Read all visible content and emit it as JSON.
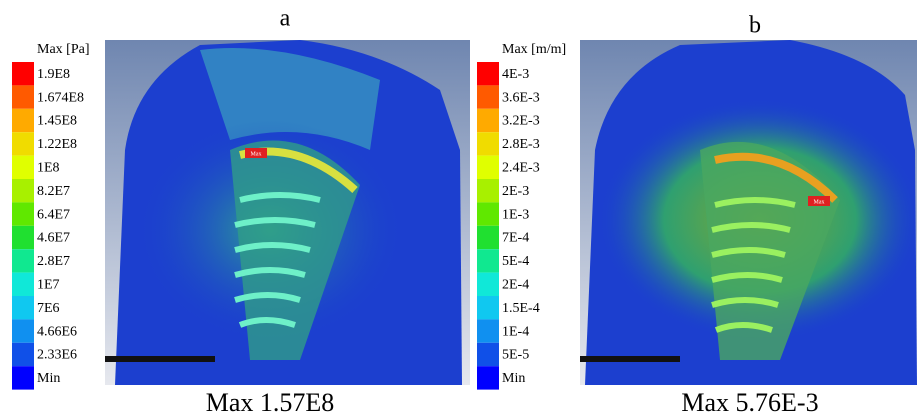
{
  "panels": [
    {
      "label": "a",
      "legend_title": "Max [Pa]",
      "legend_labels": [
        "1.9E8",
        "1.674E8",
        "1.45E8",
        "1.22E8",
        "1E8",
        "8.2E7",
        "6.4E7",
        "4.6E7",
        "2.8E7",
        "1E7",
        "7E6",
        "4.66E6",
        "2.33E6",
        "Min"
      ],
      "marker": "Max",
      "caption": "Max 1.57E8"
    },
    {
      "label": "b",
      "legend_title": "Max [m/m]",
      "legend_labels": [
        "4E-3",
        "3.6E-3",
        "3.2E-3",
        "2.8E-3",
        "2.4E-3",
        "2E-3",
        "1E-3",
        "7E-4",
        "5E-4",
        "2E-4",
        "1.5E-4",
        "1E-4",
        "5E-5",
        "Min"
      ],
      "marker": "Max",
      "caption": "Max 5.76E-3"
    }
  ]
}
